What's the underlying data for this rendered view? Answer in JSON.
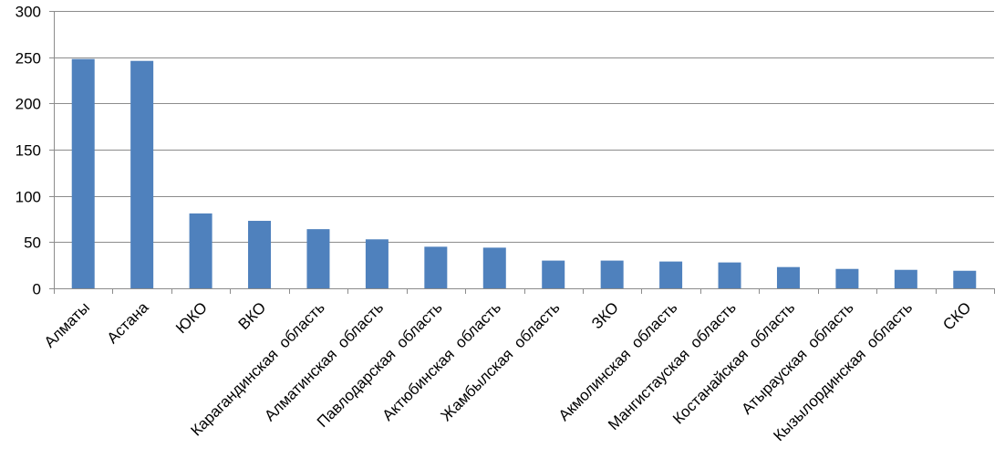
{
  "chart_data": {
    "type": "bar",
    "title": "",
    "xlabel": "",
    "ylabel": "",
    "ylim": [
      0,
      300
    ],
    "yticks": [
      0,
      50,
      100,
      150,
      200,
      250,
      300
    ],
    "grid": true,
    "legend": "none",
    "bar_color": "#4f81bd",
    "categories": [
      "Алматы",
      "Астана",
      "ЮКО",
      "ВКО",
      "Карагандинская  область",
      "Алматинская  область",
      "Павлодарская  область",
      "Актюбинская  область",
      "Жамбылская  область",
      "ЗКО",
      "Акмолинская  область",
      "Мангистауская  область",
      "Костанайская  область",
      "Атырауская  область",
      "Кызылординская  область",
      "СКО"
    ],
    "values": [
      248,
      246,
      81,
      73,
      64,
      53,
      45,
      44,
      30,
      30,
      29,
      28,
      23,
      21,
      20,
      19
    ]
  }
}
